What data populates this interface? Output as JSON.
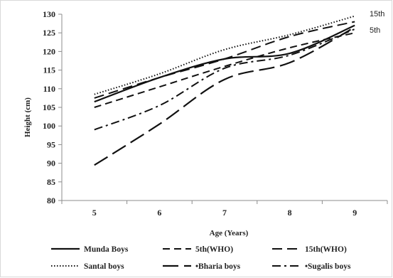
{
  "chart_data": {
    "type": "line",
    "xlabel": "Age (Years)",
    "ylabel": "Height (cm)",
    "x": [
      5,
      6,
      7,
      8,
      9
    ],
    "xlim": [
      4.5,
      9.5
    ],
    "ylim": [
      80,
      130
    ],
    "yticks": [
      80,
      85,
      90,
      95,
      100,
      105,
      110,
      115,
      120,
      125,
      130
    ],
    "grid": false,
    "legend_position": "bottom",
    "series": [
      {
        "name": "Munda Boys",
        "values": [
          106.5,
          113.0,
          118.0,
          119.5,
          127.0
        ],
        "style": "solid"
      },
      {
        "name": "5th(WHO)",
        "values": [
          105.0,
          110.5,
          116.0,
          121.0,
          125.0
        ],
        "style": "dashed"
      },
      {
        "name": "15th(WHO)",
        "values": [
          107.5,
          113.0,
          118.0,
          124.0,
          128.0
        ],
        "style": "long-dashed"
      },
      {
        "name": "Santal boys",
        "values": [
          108.5,
          114.0,
          120.5,
          124.5,
          129.5
        ],
        "style": "dotted"
      },
      {
        "name": "Bharia boys",
        "values": [
          89.5,
          100.5,
          112.5,
          117.0,
          126.5
        ],
        "style": "long-dash"
      },
      {
        "name": "Sugalis boys",
        "values": [
          99.0,
          105.5,
          115.5,
          119.0,
          126.0
        ],
        "style": "dash-dot"
      }
    ],
    "annotations": [
      {
        "text": "15th",
        "x": 9,
        "y": 130
      },
      {
        "text": "5th",
        "x": 9,
        "y": 126
      }
    ],
    "legend_labels": [
      "Munda Boys",
      "5th(WHO)",
      "15th(WHO)",
      "Santal boys",
      "•Bharia boys",
      "•Sugalis boys"
    ]
  }
}
